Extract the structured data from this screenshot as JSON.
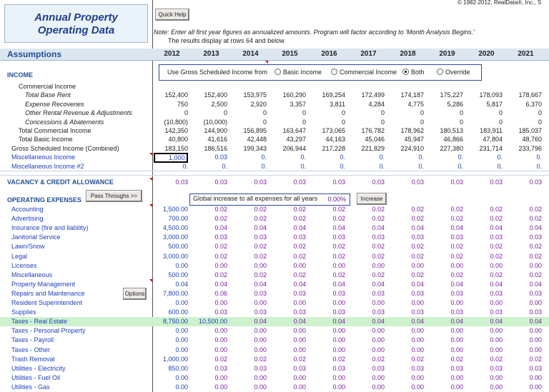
{
  "copyright": "© 1982-2012, RealData®, Inc., S",
  "title": "Annual Property Operating Data",
  "quick_help": "Quick Help",
  "note": [
    "Note: Enter all first year figures as annualized amounts.  Program will factor according to 'Month Analysis Begins.'",
    "The results display at rows 64 and below"
  ],
  "header": {
    "label": "Assumptions",
    "years": [
      "2012",
      "2013",
      "2014",
      "2015",
      "2016",
      "2017",
      "2018",
      "2019",
      "2020",
      "2021"
    ]
  },
  "income": {
    "heading": "INCOME",
    "selector": {
      "label": "Use Gross Scheduled Income from",
      "options": [
        "Basic Income",
        "Commercial Income",
        "Both",
        "Override"
      ],
      "selected_index": 2
    },
    "rows": [
      {
        "label": "Commercial Income"
      },
      {
        "label": "Total Base Rent",
        "values": [
          "152,400",
          "152,400",
          "153,975",
          "160,290",
          "169,254",
          "172,499",
          "174,187",
          "175,227",
          "178,093",
          "178,667"
        ]
      },
      {
        "label": "Expense Recoveries",
        "values": [
          "750",
          "2,500",
          "2,920",
          "3,357",
          "3,811",
          "4,284",
          "4,775",
          "5,286",
          "5,817",
          "6,370"
        ]
      },
      {
        "label": "Other Rental Revenue & Adjustments",
        "values": [
          "0",
          "0",
          "0",
          "0",
          "0",
          "0",
          "0",
          "0",
          "0",
          "0"
        ]
      },
      {
        "label": "Concessions & Abatements",
        "values": [
          "(10,800)",
          "(10,000)",
          "0",
          "0",
          "0",
          "0",
          "0",
          "0",
          "0",
          "0"
        ]
      },
      {
        "label": "Total Commercial Income",
        "values": [
          "142,350",
          "144,900",
          "156,895",
          "163,647",
          "173,065",
          "176,782",
          "178,962",
          "180,513",
          "183,911",
          "185,037"
        ]
      },
      {
        "label": "Total Basic Income",
        "values": [
          "40,800",
          "41,616",
          "42,448",
          "43,297",
          "44,163",
          "45,046",
          "45,947",
          "46,866",
          "47,804",
          "48,760"
        ]
      },
      {
        "label": "Gross Scheduled Income (Combined)",
        "values": [
          "183,150",
          "186,516",
          "199,343",
          "206,944",
          "217,228",
          "221,829",
          "224,910",
          "227,380",
          "231,714",
          "233,796"
        ]
      },
      {
        "label": "Miscellaneous Income",
        "values": [
          "1,000.",
          "0.03",
          "0.",
          "0.",
          "0.",
          "0.",
          "0.",
          "0.",
          "0.",
          "0."
        ]
      },
      {
        "label": "Miscellaneous Income  #2",
        "values": [
          "0.",
          "0.",
          "0.",
          "0.",
          "0.",
          "0.",
          "0.",
          "0.",
          "0.",
          "0."
        ]
      }
    ]
  },
  "vacancy": {
    "label": "VACANCY & CREDIT ALLOWANCE",
    "values": [
      "0.03",
      "0.03",
      "0.03",
      "0.03",
      "0.03",
      "0.03",
      "0.03",
      "0.03",
      "0.03",
      "0.03"
    ]
  },
  "expenses": {
    "heading": "OPERATING EXPENSES",
    "pass_throughs": "Pass Throughs >>",
    "global_label": "Global increase to all expenses for all years",
    "global_value": "0.00%",
    "increase": "Increase",
    "options": "Options",
    "rows": [
      {
        "label": "Accounting",
        "values": [
          "1,500.00",
          "0.02",
          "0.02",
          "0.02",
          "0.02",
          "0.02",
          "0.02",
          "0.02",
          "0.02",
          "0.02"
        ]
      },
      {
        "label": "Advertising",
        "values": [
          "700.00",
          "0.02",
          "0.02",
          "0.02",
          "0.02",
          "0.02",
          "0.02",
          "0.02",
          "0.02",
          "0.02"
        ]
      },
      {
        "label": "Insurance (fire and liability)",
        "values": [
          "4,500.00",
          "0.04",
          "0.04",
          "0.04",
          "0.04",
          "0.04",
          "0.04",
          "0.04",
          "0.04",
          "0.04"
        ]
      },
      {
        "label": "Janitorial Service",
        "values": [
          "3,000.00",
          "0.03",
          "0.03",
          "0.03",
          "0.03",
          "0.03",
          "0.03",
          "0.03",
          "0.03",
          "0.03"
        ]
      },
      {
        "label": "Lawn/Snow",
        "values": [
          "500.00",
          "0.02",
          "0.02",
          "0.02",
          "0.02",
          "0.02",
          "0.02",
          "0.02",
          "0.02",
          "0.02"
        ]
      },
      {
        "label": "Legal",
        "values": [
          "3,000.00",
          "0.02",
          "0.02",
          "0.02",
          "0.02",
          "0.02",
          "0.02",
          "0.02",
          "0.02",
          "0.02"
        ]
      },
      {
        "label": "Licenses",
        "values": [
          "0.00",
          "0.00",
          "0.00",
          "0.00",
          "0.00",
          "0.00",
          "0.00",
          "0.00",
          "0.00",
          "0.00"
        ]
      },
      {
        "label": "Miscellaneous",
        "values": [
          "500.00",
          "0.02",
          "0.02",
          "0.02",
          "0.02",
          "0.02",
          "0.02",
          "0.02",
          "0.02",
          "0.02"
        ]
      },
      {
        "label": "Property Management",
        "values": [
          "0.04",
          "0.04",
          "0.04",
          "0.04",
          "0.04",
          "0.04",
          "0.04",
          "0.04",
          "0.04",
          "0.04"
        ]
      },
      {
        "label": "Repairs and Maintenance",
        "values": [
          "7,800.00",
          "0.06",
          "0.03",
          "0.03",
          "0.03",
          "0.03",
          "0.03",
          "0.03",
          "0.03",
          "0.03"
        ]
      },
      {
        "label": "Resident Superintendent",
        "values": [
          "0.00",
          "0.00",
          "0.00",
          "0.00",
          "0.00",
          "0.00",
          "0.00",
          "0.00",
          "0.00",
          "0.00"
        ]
      },
      {
        "label": "Supplies",
        "values": [
          "600.00",
          "0.03",
          "0.03",
          "0.03",
          "0.03",
          "0.03",
          "0.03",
          "0.03",
          "0.03",
          "0.03"
        ]
      },
      {
        "label": "Taxes - Real Estate",
        "values": [
          "8,750.00",
          "10,500.00",
          "0.04",
          "0.04",
          "0.04",
          "0.04",
          "0.04",
          "0.04",
          "0.04",
          "0.04"
        ]
      },
      {
        "label": "Taxes - Personal Property",
        "values": [
          "0.00",
          "0.00",
          "0.00",
          "0.00",
          "0.00",
          "0.00",
          "0.00",
          "0.00",
          "0.00",
          "0.00"
        ]
      },
      {
        "label": "Taxes - Payroll",
        "values": [
          "0.00",
          "0.00",
          "0.00",
          "0.00",
          "0.00",
          "0.00",
          "0.00",
          "0.00",
          "0.00",
          "0.00"
        ]
      },
      {
        "label": "Taxes - Other",
        "values": [
          "0.00",
          "0.00",
          "0.00",
          "0.00",
          "0.00",
          "0.00",
          "0.00",
          "0.00",
          "0.00",
          "0.00"
        ]
      },
      {
        "label": "Trash Removal",
        "values": [
          "1,000.00",
          "0.02",
          "0.02",
          "0.02",
          "0.02",
          "0.02",
          "0.02",
          "0.02",
          "0.02",
          "0.02"
        ]
      },
      {
        "label": "Utilities - Electricity",
        "values": [
          "850.00",
          "0.03",
          "0.03",
          "0.03",
          "0.03",
          "0.03",
          "0.03",
          "0.03",
          "0.03",
          "0.03"
        ]
      },
      {
        "label": "Utilities - Fuel Oil",
        "values": [
          "0.00",
          "0.00",
          "0.00",
          "0.00",
          "0.00",
          "0.00",
          "0.00",
          "0.00",
          "0.00",
          "0.00"
        ]
      },
      {
        "label": "Utilities - Gas",
        "values": [
          "0.00",
          "0.00",
          "0.00",
          "0.00",
          "0.00",
          "0.00",
          "0.00",
          "0.00",
          "0.00",
          "0.00"
        ]
      }
    ]
  }
}
